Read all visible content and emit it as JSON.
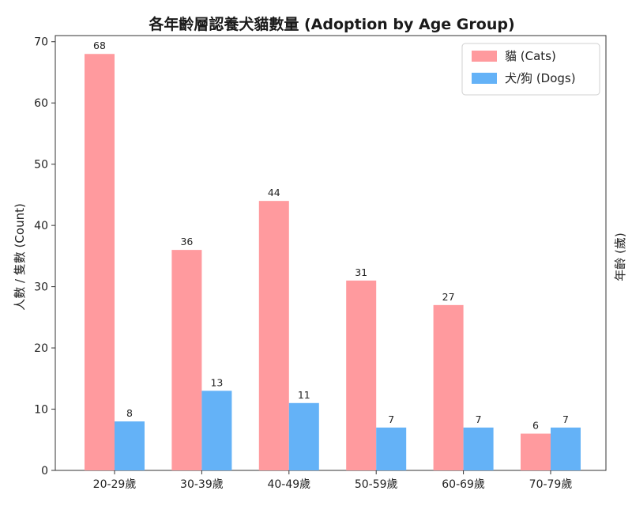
{
  "chart_data": {
    "type": "bar",
    "title": "各年齡層認養犬貓數量 (Adoption by Age Group)",
    "ylabel": "人數 / 隻數 (Count)",
    "ylabel_right": "年齡 (歲)",
    "categories": [
      "20-29歲",
      "30-39歲",
      "40-49歲",
      "50-59歲",
      "60-69歲",
      "70-79歲"
    ],
    "series": [
      {
        "name": "貓 (Cats)",
        "values": [
          68,
          36,
          44,
          31,
          27,
          6
        ],
        "color": "#ff9a9e"
      },
      {
        "name": "犬/狗 (Dogs)",
        "values": [
          8,
          13,
          11,
          7,
          7,
          7
        ],
        "color": "#64b2f7"
      }
    ],
    "ylim": [
      0,
      71
    ],
    "yticks": [
      0,
      10,
      20,
      30,
      40,
      50,
      60,
      70
    ],
    "grid": false,
    "legend_position": "top-right"
  }
}
